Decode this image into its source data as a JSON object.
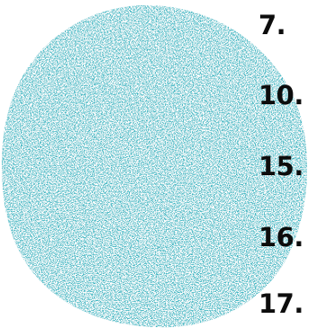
{
  "numbers": [
    "7.",
    "10.",
    "15.",
    "16.",
    "17."
  ],
  "colors": {
    "circle": "#3fb7c3",
    "speckle": "#ffffff",
    "text": "#0d0d0d",
    "background": "#ffffff"
  }
}
